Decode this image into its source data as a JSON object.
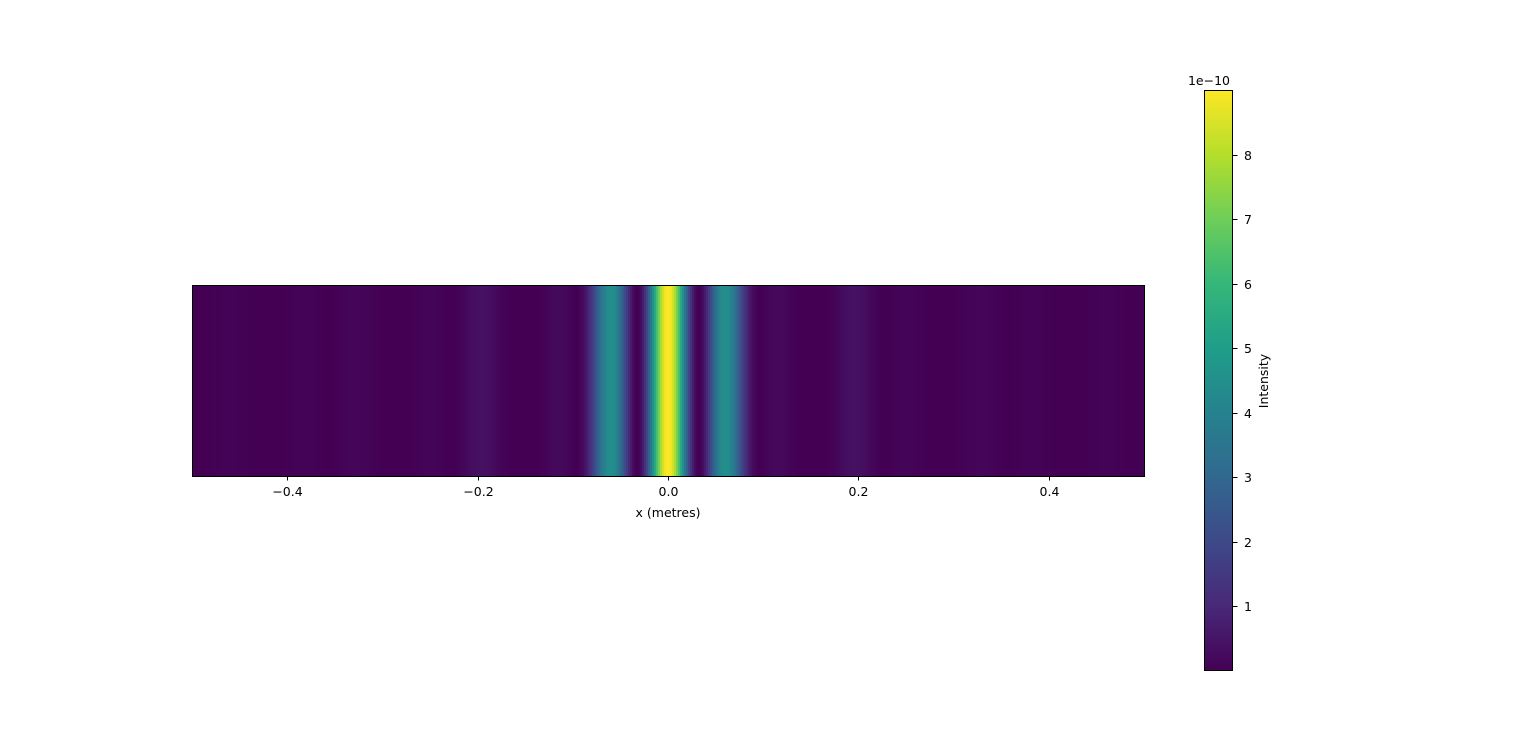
{
  "chart_data": {
    "type": "heatmap",
    "title": "",
    "xlabel": "x (metres)",
    "ylabel": "",
    "xlim": [
      -0.5,
      0.5
    ],
    "x_ticks": [
      -0.4,
      -0.2,
      0.0,
      0.2,
      0.4
    ],
    "x_tick_labels": [
      "−0.4",
      "−0.2",
      "0.0",
      "0.2",
      "0.4"
    ],
    "y_axis_visible": false,
    "colormap": "viridis",
    "intensity_profile": {
      "description_units": "intensity in units of 1e-10",
      "x": [
        -0.5,
        -0.45,
        -0.4,
        -0.35,
        -0.3,
        -0.25,
        -0.2,
        -0.15,
        -0.1,
        -0.05,
        0.0,
        0.05,
        0.1,
        0.15,
        0.2,
        0.25,
        0.3,
        0.35,
        0.4,
        0.45,
        0.5
      ],
      "peak_value": 9.0,
      "fringe_spacing": 0.065,
      "envelope_width": 0.14
    },
    "colorbar": {
      "label": "Intensity",
      "offset_text": "1e−10",
      "min": 0.0,
      "max": 9.0,
      "ticks": [
        1,
        2,
        3,
        4,
        5,
        6,
        7,
        8
      ],
      "tick_labels": [
        "1",
        "2",
        "3",
        "4",
        "5",
        "6",
        "7",
        "8"
      ]
    },
    "grid": false,
    "legend": "none"
  },
  "colors": {
    "viridis_stops": [
      "#440154",
      "#482878",
      "#3e4989",
      "#31688e",
      "#26828e",
      "#1f9e89",
      "#35b779",
      "#6ece58",
      "#b5de2b",
      "#fde725"
    ]
  }
}
